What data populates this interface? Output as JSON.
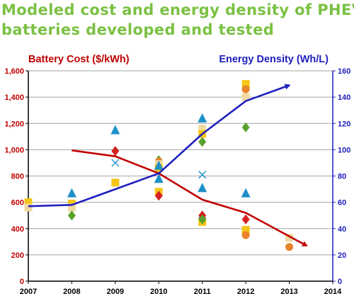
{
  "title_lines": [
    "Modeled cost and energy density of PHEV",
    "batteries developed and tested"
  ],
  "colors": {
    "title": "#7ac143",
    "cost": "#c00000",
    "density": "#1f1fbf",
    "axis_left": "#c00000",
    "axis_right": "#1f1fbf",
    "grid": "#a6a6a6"
  },
  "chart_data": {
    "type": "line",
    "title": "",
    "xlabel": "",
    "ylabel": "Battery Cost ($/kWh)",
    "y2label": "Energy Density (Wh/L)",
    "x_ticks": [
      "2007",
      "2008",
      "2009",
      "2010",
      "2011",
      "2012",
      "2013",
      "2014"
    ],
    "xlim": [
      2007,
      2014
    ],
    "ylim": [
      0,
      1600
    ],
    "y_ticks": [
      "0",
      "200",
      "400",
      "600",
      "800",
      "1,000",
      "1,200",
      "1,400",
      "1,600"
    ],
    "y2lim": [
      0,
      160
    ],
    "y2_ticks": [
      "0",
      "20",
      "40",
      "60",
      "80",
      "100",
      "120",
      "140",
      "160"
    ],
    "grid": "horizontal",
    "series": [
      {
        "name": "Battery Cost ($/kWh)",
        "axis": "left",
        "color": "#c00000",
        "x": [
          2008,
          2009,
          2010,
          2011,
          2012,
          2013.4
        ],
        "y": [
          995,
          950,
          820,
          620,
          520,
          270
        ]
      },
      {
        "name": "Energy Density (Wh/L)",
        "axis": "right",
        "color": "#1f1fbf",
        "x": [
          2007,
          2008,
          2009,
          2010,
          2011,
          2012,
          2013
        ],
        "y": [
          57,
          58,
          70,
          82,
          112,
          137,
          149
        ]
      }
    ],
    "scatter": [
      {
        "x": 2007,
        "y2": 60,
        "shape": "square",
        "color": "#f5c518"
      },
      {
        "x": 2007,
        "y2": 56,
        "shape": "square",
        "color": "#f0d9a0"
      },
      {
        "x": 2008,
        "y2": 67,
        "shape": "triangle",
        "color": "#1e90c8"
      },
      {
        "x": 2008,
        "y2": 59,
        "shape": "square",
        "color": "#f5c518"
      },
      {
        "x": 2008,
        "y2": 56,
        "shape": "square",
        "color": "#f0d9a0"
      },
      {
        "x": 2008,
        "y2": 50,
        "shape": "diamond",
        "color": "#5aa02c"
      },
      {
        "x": 2009,
        "y2": 115,
        "shape": "triangle",
        "color": "#1e90c8"
      },
      {
        "x": 2009,
        "y2": 99,
        "shape": "diamond",
        "color": "#d42020"
      },
      {
        "x": 2009,
        "y2": 90,
        "shape": "x",
        "color": "#1e90c8"
      },
      {
        "x": 2009,
        "y2": 75,
        "shape": "square",
        "color": "#f5c518"
      },
      {
        "x": 2010,
        "y2": 92,
        "shape": "diamond",
        "color": "#5aa02c"
      },
      {
        "x": 2010,
        "y2": 91,
        "shape": "circle",
        "color": "#e8832a"
      },
      {
        "x": 2010,
        "y2": 89,
        "shape": "square",
        "color": "#f0d9a0"
      },
      {
        "x": 2010,
        "y2": 86,
        "shape": "square",
        "color": "#f5c518"
      },
      {
        "x": 2010,
        "y2": 88,
        "shape": "triangle",
        "color": "#1e90c8"
      },
      {
        "x": 2010,
        "y2": 78,
        "shape": "triangle",
        "color": "#1e90c8"
      },
      {
        "x": 2010,
        "y2": 68,
        "shape": "square",
        "color": "#f5c518"
      },
      {
        "x": 2010,
        "y2": 65,
        "shape": "diamond",
        "color": "#d42020"
      },
      {
        "x": 2011,
        "y2": 124,
        "shape": "triangle",
        "color": "#1e90c8"
      },
      {
        "x": 2011,
        "y2": 116,
        "shape": "square",
        "color": "#f0d9a0"
      },
      {
        "x": 2011,
        "y2": 112,
        "shape": "square",
        "color": "#f5c518"
      },
      {
        "x": 2011,
        "y2": 106,
        "shape": "diamond",
        "color": "#5aa02c"
      },
      {
        "x": 2011,
        "y2": 81,
        "shape": "x",
        "color": "#1e90c8"
      },
      {
        "x": 2011,
        "y2": 71,
        "shape": "triangle",
        "color": "#1e90c8"
      },
      {
        "x": 2011,
        "y2": 50,
        "shape": "diamond",
        "color": "#d42020"
      },
      {
        "x": 2011,
        "y2": 46,
        "shape": "x",
        "color": "#1e90c8"
      },
      {
        "x": 2011,
        "y2": 45,
        "shape": "square",
        "color": "#f5c518"
      },
      {
        "x": 2011,
        "y2": 47,
        "shape": "diamond",
        "color": "#5aa02c"
      },
      {
        "x": 2012,
        "y2": 150,
        "shape": "square",
        "color": "#f5c518"
      },
      {
        "x": 2012,
        "y2": 146,
        "shape": "circle",
        "color": "#e8832a"
      },
      {
        "x": 2012,
        "y2": 140,
        "shape": "square",
        "color": "#f0d9a0"
      },
      {
        "x": 2012,
        "y2": 117,
        "shape": "diamond",
        "color": "#5aa02c"
      },
      {
        "x": 2012,
        "y2": 67,
        "shape": "triangle",
        "color": "#1e90c8"
      },
      {
        "x": 2012,
        "y2": 47,
        "shape": "diamond",
        "color": "#d42020"
      },
      {
        "x": 2012,
        "y2": 39,
        "shape": "square",
        "color": "#f5c518"
      },
      {
        "x": 2012,
        "y2": 35,
        "shape": "circle",
        "color": "#e8832a"
      },
      {
        "x": 2013,
        "y2": 33,
        "shape": "square",
        "color": "#f0d9a0"
      },
      {
        "x": 2013,
        "y2": 26,
        "shape": "circle",
        "color": "#e8832a"
      }
    ]
  }
}
